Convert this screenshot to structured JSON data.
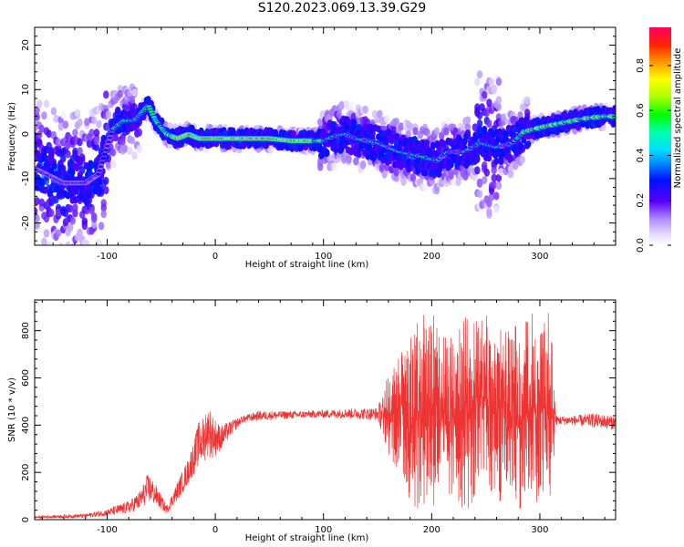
{
  "title": "S120.2023.069.13.39.G29",
  "colors": {
    "snr_line": "#ee3333",
    "axis": "#000000",
    "background": "#ffffff",
    "colormap_low": "#ffffff",
    "colormap_high": "#ff0055"
  },
  "chart_data": [
    {
      "type": "heatmap",
      "xlabel": "Height of straight line (km)",
      "ylabel": "Frequency (Hz)",
      "xlim": [
        -167,
        370
      ],
      "ylim": [
        -25,
        24
      ],
      "xticks": [
        -100,
        0,
        100,
        200,
        300
      ],
      "yticks": [
        -20,
        -10,
        0,
        10,
        20
      ],
      "ridge": {
        "x": [
          -165,
          -140,
          -120,
          -108,
          -95,
          -85,
          -75,
          -62,
          -55,
          -45,
          -35,
          -25,
          -15,
          0,
          50,
          70,
          90,
          100,
          110,
          120,
          130,
          150,
          170,
          190,
          205,
          215,
          230,
          245,
          260,
          275,
          285,
          300,
          320,
          340,
          360,
          370
        ],
        "y": [
          -8,
          -11,
          -11,
          -9,
          1,
          3,
          3,
          6.5,
          3,
          0,
          -1,
          0,
          -1,
          -1,
          -1,
          -1.5,
          -1.5,
          -1.5,
          -0.5,
          0,
          -1,
          -2,
          -4,
          -5,
          -6,
          -4,
          -4,
          -2,
          -3,
          -2,
          0.5,
          1.5,
          2.5,
          3.5,
          4,
          4
        ],
        "note_amplitude_max": 0.97
      },
      "colorbar": {
        "label": "Normalized spectral amplitude",
        "ticks": [
          0.0,
          0.2,
          0.4,
          0.6,
          0.8
        ],
        "tick_labels": [
          "0.0",
          "0.2",
          "0.4",
          "0.6",
          "0.8"
        ],
        "range": [
          0,
          0.97
        ]
      }
    },
    {
      "type": "line",
      "xlabel": "Height of straight line (km)",
      "ylabel": "SNR (10 * v/v)",
      "xlim": [
        -167,
        370
      ],
      "ylim": [
        0,
        930
      ],
      "xticks": [
        -100,
        0,
        100,
        200,
        300
      ],
      "yticks": [
        0,
        200,
        400,
        600,
        800
      ],
      "series": [
        {
          "color": "#ee3333",
          "envelope": {
            "x": [
              -167,
              -120,
              -100,
              -80,
              -70,
              -62,
              -55,
              -45,
              -35,
              -25,
              -15,
              -5,
              5,
              15,
              25,
              40,
              80,
              120,
              150,
              160,
              170,
              180,
              190,
              200,
              210,
              220,
              230,
              240,
              250,
              260,
              270,
              280,
              290,
              300,
              310,
              315,
              330,
              350,
              370
            ],
            "lo": [
              5,
              8,
              15,
              25,
              40,
              70,
              60,
              25,
              80,
              150,
              230,
              250,
              290,
              360,
              410,
              420,
              430,
              430,
              420,
              280,
              180,
              60,
              30,
              40,
              50,
              60,
              40,
              30,
              120,
              60,
              90,
              50,
              30,
              25,
              40,
              400,
              400,
              390,
              380
            ],
            "hi": [
              15,
              25,
              45,
              80,
              120,
              200,
              150,
              60,
              160,
              260,
              420,
              460,
              400,
              420,
              440,
              460,
              460,
              470,
              475,
              620,
              700,
              800,
              860,
              900,
              800,
              780,
              870,
              850,
              880,
              800,
              830,
              860,
              870,
              900,
              880,
              440,
              440,
              450,
              440
            ]
          }
        }
      ]
    }
  ]
}
